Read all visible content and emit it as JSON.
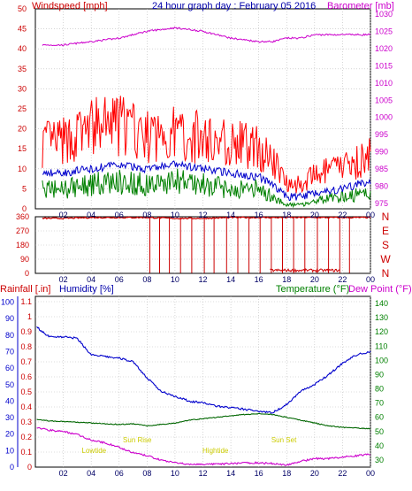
{
  "panels": {
    "wind": {
      "left_title": "Windspeed [mph]",
      "center_title": "24 hour graph day : February 05 2016",
      "right_title": "Barometer [mb]",
      "left_ticks": [
        "0",
        "5",
        "10",
        "15",
        "20",
        "25",
        "30",
        "35",
        "40",
        "45",
        "50"
      ],
      "right_ticks": [
        "975",
        "980",
        "985",
        "990",
        "995",
        "1000",
        "1005",
        "1010",
        "1015",
        "1020",
        "1025",
        "1030"
      ],
      "x_ticks": [
        "02",
        "04",
        "06",
        "08",
        "10",
        "12",
        "14",
        "16",
        "18",
        "20",
        "22",
        "00"
      ]
    },
    "direction": {
      "left_ticks": [
        "0",
        "90",
        "180",
        "270",
        "360"
      ],
      "compass": [
        "N",
        "W",
        "S",
        "E",
        "N"
      ],
      "x_ticks": [
        "02",
        "04",
        "06",
        "08",
        "10",
        "12",
        "14",
        "16",
        "18",
        "20",
        "22",
        "00"
      ]
    },
    "temp": {
      "rain_title": "Rainfall [.in]",
      "humidity_title": "Humidity [%]",
      "temp_title": "Temperature (°F)",
      "dew_title": "Dew Point (°F)",
      "humidity_ticks": [
        "0",
        "10",
        "20",
        "30",
        "40",
        "50",
        "60",
        "70",
        "80",
        "90",
        "100"
      ],
      "rain_ticks": [
        "0",
        "0.1",
        "0.2",
        "0.3",
        "0.4",
        "0.5",
        "0.6",
        "0.7",
        "0.8",
        "0.9",
        "1",
        "1.1"
      ],
      "temp_ticks": [
        "30",
        "40",
        "50",
        "60",
        "70",
        "80",
        "90",
        "100",
        "110",
        "120",
        "130",
        "140"
      ],
      "x_ticks": [
        "02",
        "04",
        "06",
        "08",
        "10",
        "12",
        "14",
        "16",
        "18",
        "20",
        "22",
        "00"
      ],
      "annotations": [
        "Lowtide",
        "Sun Rise",
        "Hightide",
        "Sun Set"
      ]
    }
  },
  "colors": {
    "windspeed": "#ff0000",
    "avg_wind": "#0000cc",
    "gust": "#008000",
    "barometer": "#cc00cc",
    "direction": "#cc0000",
    "humidity": "#0000cc",
    "temperature": "#006600",
    "dewpoint": "#006600",
    "annotation": "#cccc00",
    "grid": "#bbbbbb",
    "rain_axis": "#cc0000",
    "temp_axis": "#008000"
  },
  "chart_data": [
    {
      "type": "line",
      "title": "24 hour graph day : February 05 2016",
      "x": [
        0.5,
        2,
        4,
        6,
        8,
        10,
        12,
        14,
        16,
        17,
        18,
        19,
        20,
        22,
        24
      ],
      "series": [
        {
          "name": "Windspeed [mph]",
          "axis": "left",
          "values": [
            14,
            14,
            17,
            18,
            15,
            16,
            15,
            14,
            13,
            10,
            6,
            5,
            7,
            9,
            11
          ]
        },
        {
          "name": "",
          "axis": "left",
          "values": [
            9,
            9,
            10,
            11,
            10,
            11,
            10,
            9,
            8,
            6,
            3,
            3,
            4,
            5,
            7
          ]
        },
        {
          "name": "",
          "axis": "left",
          "values": [
            5,
            5,
            6,
            7,
            6,
            7,
            6,
            5,
            5,
            3,
            1,
            1,
            2,
            3,
            4
          ]
        },
        {
          "name": "Barometer [mb]",
          "axis": "right",
          "values": [
            1021,
            1021,
            1022,
            1023,
            1025,
            1026,
            1025,
            1023,
            1022,
            1022,
            1023,
            1023,
            1024,
            1024,
            1024
          ]
        }
      ],
      "xlim": [
        0,
        24
      ],
      "ylim_left": [
        0,
        50
      ],
      "ylim_right": [
        973.5,
        1031.5
      ]
    },
    {
      "type": "line",
      "x": [
        0.5,
        2,
        4,
        6,
        8,
        10,
        12,
        14,
        16,
        18,
        20,
        22,
        24
      ],
      "series": [
        {
          "name": "",
          "values": [
            350,
            350,
            355,
            355,
            355,
            350,
            350,
            355,
            355,
            355,
            355,
            355,
            355
          ]
        }
      ],
      "drop_hours": [
        8.2,
        8.9,
        9.6,
        10.4,
        11.2,
        12.1,
        12.8,
        13.7,
        14.5,
        15.3,
        16.1,
        16.9,
        17.7,
        18.5,
        19.3,
        20.2,
        21.0,
        21.8,
        22.5
      ],
      "xlim": [
        0,
        24
      ],
      "ylim": [
        0,
        360
      ]
    },
    {
      "type": "line",
      "x": [
        0.1,
        0.5,
        1,
        2,
        3,
        4,
        5,
        6,
        7,
        8,
        9,
        10,
        11,
        12,
        13,
        14,
        15,
        16,
        17,
        18,
        19,
        20,
        21,
        22,
        23,
        24
      ],
      "series": [
        {
          "name": "Humidity [%]",
          "axis": "humidity",
          "values": [
            85,
            82,
            79,
            79,
            78,
            68,
            67,
            66,
            64,
            54,
            46,
            43,
            40,
            39,
            37,
            36,
            35,
            34,
            33,
            38,
            46,
            50,
            56,
            63,
            68,
            70
          ]
        },
        {
          "name": "Temperature (°F)",
          "axis": "temp",
          "values": [
            58.5,
            58,
            57.5,
            57,
            56.5,
            56,
            55.5,
            55,
            55.5,
            54,
            55,
            56,
            58,
            59,
            60,
            61,
            62,
            62.5,
            62,
            60,
            58,
            56,
            54,
            53,
            52.5,
            52
          ]
        },
        {
          "name": "Dew Point (°F)",
          "axis": "temp",
          "values": [
            53,
            52,
            51,
            50,
            48,
            44,
            42,
            39,
            35,
            33,
            30,
            28,
            27,
            27,
            27,
            27.5,
            28,
            28,
            27.5,
            26.5,
            29,
            31,
            31,
            32,
            33,
            34
          ]
        }
      ],
      "annotations": [
        {
          "label": "Lowtide",
          "hour": 4.2
        },
        {
          "label": "Sun Rise",
          "hour": 7.3
        },
        {
          "label": "Hightide",
          "hour": 12.9
        },
        {
          "label": "Sun Set",
          "hour": 17.8
        }
      ],
      "xlim": [
        0,
        24
      ],
      "ylim_humidity": [
        0,
        100
      ],
      "ylim_rain": [
        0,
        1.1
      ],
      "ylim_temp": [
        25,
        145
      ]
    }
  ]
}
